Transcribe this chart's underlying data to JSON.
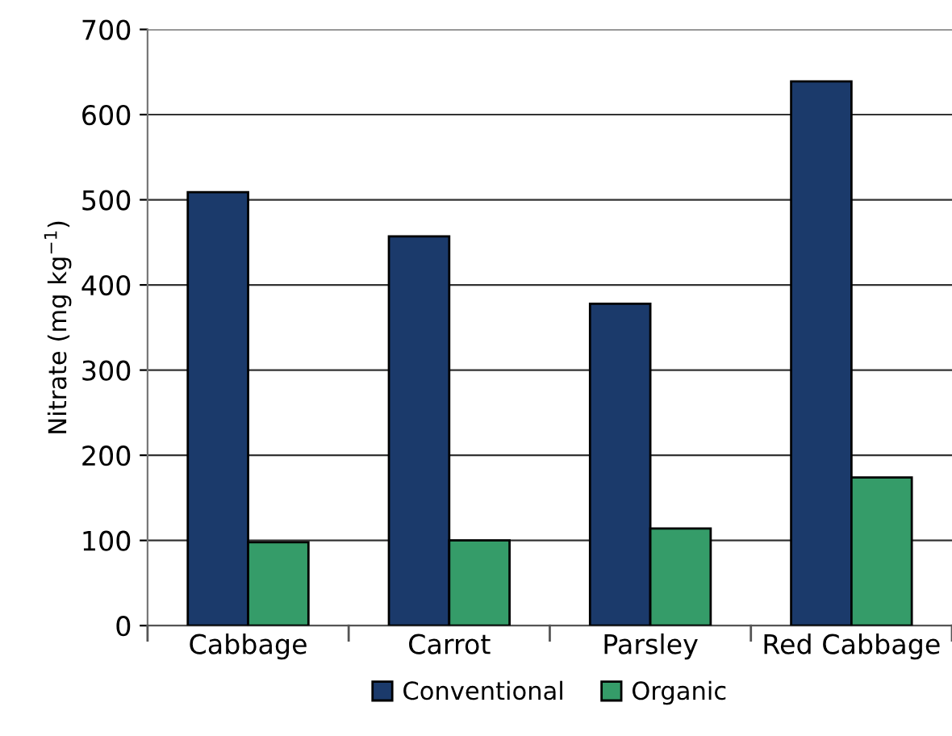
{
  "chart_data": {
    "type": "bar",
    "ylabel": "Nitrate (mg kg$^{−1}$)",
    "categories": [
      "Cabbage",
      "Carrot",
      "Parsley",
      "Red Cabbage"
    ],
    "series": [
      {
        "name": "Conventional",
        "color": "#1b3a6b",
        "values": [
          509,
          457,
          378,
          639
        ]
      },
      {
        "name": "Organic",
        "color": "#359c69",
        "values": [
          98,
          100,
          114,
          174
        ]
      }
    ],
    "ylim": [
      0,
      700
    ],
    "yticks": [
      0,
      100,
      200,
      300,
      400,
      500,
      600,
      700
    ],
    "grid": "y",
    "legend": "bottom"
  }
}
